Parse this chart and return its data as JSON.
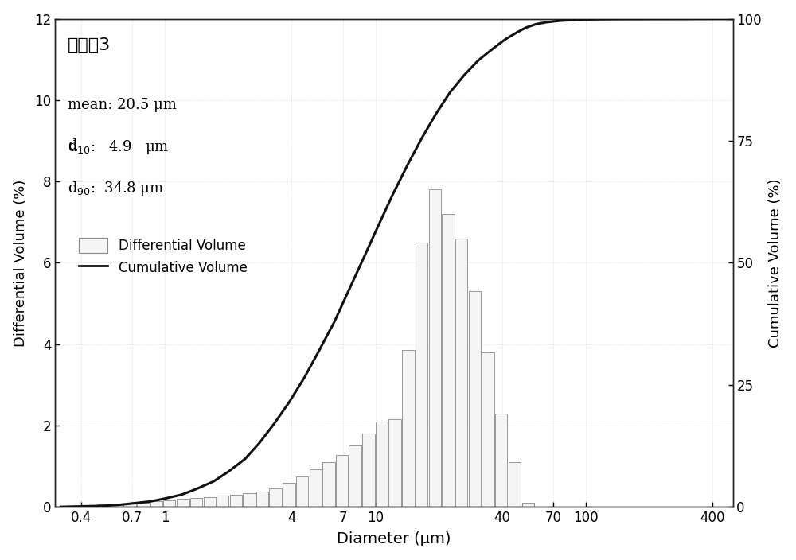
{
  "title_text": "实施例3",
  "xlabel": "Diameter (μm)",
  "ylabel_left": "Differential Volume (%)",
  "ylabel_right": "Cumulative Volume (%)",
  "xlim_log": [
    0.3,
    500
  ],
  "xticks_positions": [
    0.4,
    0.7,
    1,
    4,
    7,
    10,
    40,
    70,
    100,
    400
  ],
  "xtick_labels": [
    "0.4",
    "0.7",
    "1",
    "4",
    "7",
    "10",
    "40",
    "70",
    "100",
    "400"
  ],
  "ylim_left": [
    0,
    12
  ],
  "ylim_right": [
    0,
    100
  ],
  "yticks_left": [
    0,
    2,
    4,
    6,
    8,
    10,
    12
  ],
  "yticks_right": [
    0,
    25,
    50,
    75,
    100
  ],
  "bar_color": "#f5f5f5",
  "bar_edge_color": "#888888",
  "line_color": "#111111",
  "background_color": "#ffffff",
  "bar_centers_log": [
    0.38,
    0.44,
    0.51,
    0.59,
    0.68,
    0.79,
    0.91,
    1.05,
    1.22,
    1.41,
    1.63,
    1.88,
    2.18,
    2.52,
    2.91,
    3.36,
    3.89,
    4.5,
    5.2,
    6.01,
    6.95,
    8.03,
    9.29,
    10.74,
    12.42,
    14.37,
    16.62,
    19.22,
    22.23,
    25.71,
    29.74,
    34.4,
    39.79,
    46.04,
    53.27
  ],
  "bar_heights": [
    0.03,
    0.04,
    0.06,
    0.07,
    0.09,
    0.11,
    0.13,
    0.16,
    0.19,
    0.22,
    0.24,
    0.27,
    0.3,
    0.33,
    0.38,
    0.46,
    0.58,
    0.74,
    0.92,
    1.1,
    1.28,
    1.5,
    1.8,
    2.1,
    2.15,
    3.85,
    6.5,
    7.8,
    7.2,
    6.6,
    5.3,
    3.8,
    2.3,
    1.1,
    0.1
  ],
  "cumulative_x": [
    0.32,
    0.4,
    0.5,
    0.6,
    0.7,
    0.85,
    1.0,
    1.2,
    1.4,
    1.7,
    2.0,
    2.4,
    2.8,
    3.3,
    3.9,
    4.6,
    5.4,
    6.4,
    7.5,
    8.8,
    10.3,
    12.1,
    14.2,
    16.6,
    19.4,
    22.7,
    26.5,
    30.9,
    36.0,
    41.5,
    47.0,
    52.0,
    58.0,
    65.0,
    75.0,
    90.0,
    110.0,
    150.0,
    250.0,
    400.0,
    500.0
  ],
  "cumulative_y": [
    0.0,
    0.1,
    0.2,
    0.4,
    0.7,
    1.1,
    1.7,
    2.5,
    3.6,
    5.2,
    7.2,
    9.8,
    13.0,
    17.0,
    21.5,
    26.5,
    32.0,
    38.0,
    44.5,
    51.0,
    57.5,
    64.0,
    70.0,
    75.5,
    80.5,
    85.0,
    88.5,
    91.5,
    93.8,
    95.8,
    97.2,
    98.2,
    98.9,
    99.3,
    99.6,
    99.8,
    99.9,
    99.95,
    99.98,
    100.0,
    100.0
  ],
  "legend_bar_label": "Differential Volume",
  "legend_line_label": "Cumulative Volume",
  "mean_text": "mean: 20.5 μm",
  "d10_text": "4.9   μm",
  "d90_text": "34.8 μm"
}
